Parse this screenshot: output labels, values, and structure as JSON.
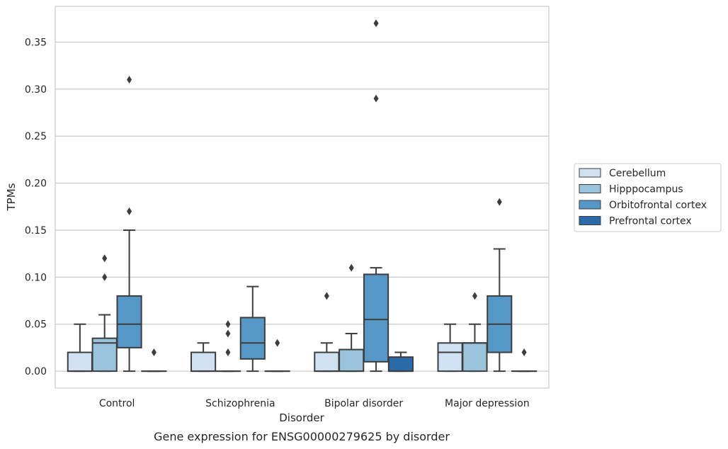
{
  "chart_data": {
    "type": "box",
    "categories": [
      "Control",
      "Schizophrenia",
      "Bipolar disorder",
      "Major depression"
    ],
    "xlabel": "Disorder",
    "ylabel": "TPMs",
    "caption": "Gene expression for ENSG00000279625 by disorder",
    "ylim": [
      -0.018,
      0.388
    ],
    "yticks": [
      "0.00",
      "0.05",
      "0.10",
      "0.15",
      "0.20",
      "0.25",
      "0.30",
      "0.35"
    ],
    "grid": "horizontal",
    "legend_position": "right",
    "series": [
      {
        "name": "Cerebellum",
        "color": "#d0e1f2",
        "boxes": [
          {
            "q1": 0.0,
            "median": 0.0,
            "q3": 0.02,
            "whisker_low": 0.0,
            "whisker_high": 0.05,
            "outliers": []
          },
          {
            "q1": 0.0,
            "median": 0.0,
            "q3": 0.02,
            "whisker_low": 0.0,
            "whisker_high": 0.03,
            "outliers": []
          },
          {
            "q1": 0.0,
            "median": 0.0,
            "q3": 0.02,
            "whisker_low": 0.0,
            "whisker_high": 0.03,
            "outliers": [
              0.08
            ]
          },
          {
            "q1": 0.0,
            "median": 0.02,
            "q3": 0.03,
            "whisker_low": 0.0,
            "whisker_high": 0.05,
            "outliers": []
          }
        ]
      },
      {
        "name": "Hipppocampus",
        "color": "#9ac3dc",
        "boxes": [
          {
            "q1": 0.0,
            "median": 0.03,
            "q3": 0.035,
            "whisker_low": 0.0,
            "whisker_high": 0.06,
            "outliers": [
              0.1,
              0.12
            ]
          },
          {
            "q1": 0.0,
            "median": 0.0,
            "q3": 0.0,
            "whisker_low": 0.0,
            "whisker_high": 0.0,
            "outliers": [
              0.02,
              0.04,
              0.05
            ]
          },
          {
            "q1": 0.0,
            "median": 0.0,
            "q3": 0.023,
            "whisker_low": 0.0,
            "whisker_high": 0.04,
            "outliers": [
              0.11
            ]
          },
          {
            "q1": 0.0,
            "median": 0.03,
            "q3": 0.03,
            "whisker_low": 0.0,
            "whisker_high": 0.05,
            "outliers": [
              0.08
            ]
          }
        ]
      },
      {
        "name": "Orbitofrontal cortex",
        "color": "#5597c6",
        "boxes": [
          {
            "q1": 0.025,
            "median": 0.05,
            "q3": 0.08,
            "whisker_low": 0.0,
            "whisker_high": 0.15,
            "outliers": [
              0.17,
              0.31
            ]
          },
          {
            "q1": 0.013,
            "median": 0.03,
            "q3": 0.057,
            "whisker_low": 0.0,
            "whisker_high": 0.09,
            "outliers": []
          },
          {
            "q1": 0.01,
            "median": 0.055,
            "q3": 0.103,
            "whisker_low": 0.0,
            "whisker_high": 0.11,
            "outliers": [
              0.29,
              0.37
            ]
          },
          {
            "q1": 0.02,
            "median": 0.05,
            "q3": 0.08,
            "whisker_low": 0.0,
            "whisker_high": 0.13,
            "outliers": [
              0.18
            ]
          }
        ]
      },
      {
        "name": "Prefrontal cortex",
        "color": "#2a6aa8",
        "boxes": [
          {
            "q1": 0.0,
            "median": 0.0,
            "q3": 0.0,
            "whisker_low": 0.0,
            "whisker_high": 0.0,
            "outliers": [
              0.02
            ]
          },
          {
            "q1": 0.0,
            "median": 0.0,
            "q3": 0.0,
            "whisker_low": 0.0,
            "whisker_high": 0.0,
            "outliers": [
              0.03
            ]
          },
          {
            "q1": 0.0,
            "median": 0.0,
            "q3": 0.015,
            "whisker_low": 0.0,
            "whisker_high": 0.02,
            "outliers": []
          },
          {
            "q1": 0.0,
            "median": 0.0,
            "q3": 0.0,
            "whisker_low": 0.0,
            "whisker_high": 0.0,
            "outliers": [
              0.02
            ]
          }
        ]
      }
    ]
  }
}
